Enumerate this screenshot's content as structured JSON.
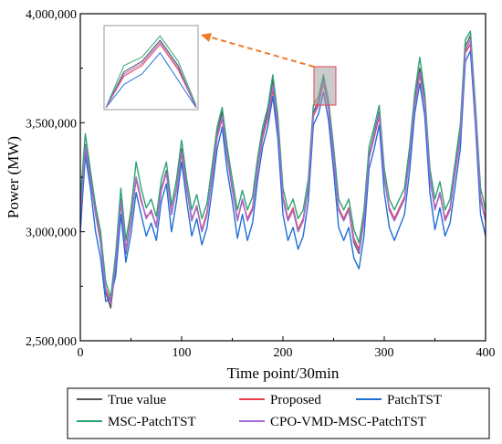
{
  "chart_data": {
    "type": "line",
    "xlabel": "Time point/30min",
    "ylabel": "Power (MW)",
    "xlim": [
      0,
      400
    ],
    "ylim": [
      2500000,
      4000000
    ],
    "x_ticks": [
      0,
      100,
      200,
      300,
      400
    ],
    "x_tick_labels": [
      "0",
      "100",
      "200",
      "300",
      "400"
    ],
    "y_ticks": [
      2500000,
      3000000,
      3500000,
      4000000
    ],
    "y_tick_labels": [
      "2,500,000",
      "3,000,000",
      "3,500,000",
      "4,000,000"
    ],
    "grid": false,
    "legend_position": "bottom",
    "x": [
      0,
      5,
      10,
      15,
      20,
      25,
      30,
      35,
      40,
      45,
      50,
      55,
      60,
      65,
      70,
      75,
      80,
      85,
      90,
      95,
      100,
      105,
      110,
      115,
      120,
      125,
      130,
      135,
      140,
      145,
      150,
      155,
      160,
      165,
      170,
      175,
      180,
      185,
      190,
      195,
      200,
      205,
      210,
      215,
      220,
      225,
      230,
      235,
      240,
      245,
      250,
      255,
      260,
      265,
      270,
      275,
      280,
      285,
      290,
      295,
      300,
      305,
      310,
      315,
      320,
      325,
      330,
      335,
      340,
      345,
      350,
      355,
      360,
      365,
      370,
      375,
      380,
      385,
      390,
      395,
      400
    ],
    "series": [
      {
        "name": "True value",
        "color": "#555555",
        "values": [
          3050000,
          3400000,
          3250000,
          3080000,
          2950000,
          2720000,
          2650000,
          2850000,
          3150000,
          2900000,
          3050000,
          3250000,
          3150000,
          3060000,
          3100000,
          3020000,
          3200000,
          3280000,
          3080000,
          3200000,
          3380000,
          3200000,
          3050000,
          3120000,
          3000000,
          3080000,
          3250000,
          3450000,
          3550000,
          3350000,
          3200000,
          3050000,
          3150000,
          3050000,
          3100000,
          3300000,
          3450000,
          3550000,
          3700000,
          3500000,
          3150000,
          3050000,
          3100000,
          3000000,
          3050000,
          3200000,
          3550000,
          3600000,
          3700000,
          3580000,
          3350000,
          3100000,
          3050000,
          3100000,
          2950000,
          2900000,
          3050000,
          3350000,
          3450000,
          3550000,
          3250000,
          3100000,
          3050000,
          3100000,
          3150000,
          3350000,
          3600000,
          3750000,
          3600000,
          3250000,
          3100000,
          3180000,
          3050000,
          3100000,
          3280000,
          3450000,
          3850000,
          3900000,
          3550000,
          3150000,
          3050000
        ]
      },
      {
        "name": "Proposed",
        "color": "#e8414e",
        "values": [
          3100000,
          3380000,
          3230000,
          3090000,
          2970000,
          2740000,
          2680000,
          2870000,
          3130000,
          2920000,
          3060000,
          3240000,
          3140000,
          3070000,
          3090000,
          3030000,
          3190000,
          3270000,
          3090000,
          3190000,
          3360000,
          3190000,
          3060000,
          3110000,
          3010000,
          3090000,
          3240000,
          3430000,
          3520000,
          3340000,
          3190000,
          3060000,
          3140000,
          3060000,
          3110000,
          3290000,
          3430000,
          3520000,
          3650000,
          3480000,
          3160000,
          3060000,
          3110000,
          3010000,
          3060000,
          3200000,
          3530000,
          3580000,
          3680000,
          3560000,
          3340000,
          3110000,
          3060000,
          3110000,
          2970000,
          2920000,
          3060000,
          3340000,
          3430000,
          3530000,
          3240000,
          3110000,
          3060000,
          3110000,
          3160000,
          3340000,
          3580000,
          3720000,
          3580000,
          3240000,
          3110000,
          3170000,
          3060000,
          3110000,
          3270000,
          3430000,
          3820000,
          3860000,
          3530000,
          3160000,
          3060000
        ]
      },
      {
        "name": "PatchTST",
        "color": "#1f6fd6",
        "values": [
          3000000,
          3350000,
          3200000,
          3000000,
          2880000,
          2680000,
          2700000,
          2800000,
          3080000,
          2860000,
          2990000,
          3180000,
          3080000,
          2980000,
          3040000,
          2960000,
          3140000,
          3220000,
          3000000,
          3140000,
          3320000,
          3140000,
          2980000,
          3060000,
          2940000,
          3020000,
          3190000,
          3380000,
          3480000,
          3280000,
          3140000,
          2970000,
          3080000,
          2960000,
          3040000,
          3240000,
          3390000,
          3480000,
          3620000,
          3430000,
          3080000,
          2960000,
          3020000,
          2920000,
          2980000,
          3140000,
          3490000,
          3540000,
          3640000,
          3510000,
          3280000,
          3020000,
          2960000,
          3020000,
          2880000,
          2830000,
          2980000,
          3290000,
          3380000,
          3490000,
          3180000,
          3020000,
          2960000,
          3020000,
          3080000,
          3280000,
          3540000,
          3680000,
          3530000,
          3180000,
          3010000,
          3110000,
          2980000,
          3040000,
          3210000,
          3380000,
          3780000,
          3830000,
          3490000,
          3080000,
          2980000
        ]
      },
      {
        "name": "MSC-PatchTST",
        "color": "#2aa46e",
        "values": [
          3150000,
          3450000,
          3280000,
          3120000,
          3000000,
          2770000,
          2700000,
          2900000,
          3200000,
          2960000,
          3100000,
          3320000,
          3200000,
          3110000,
          3150000,
          3070000,
          3240000,
          3320000,
          3120000,
          3240000,
          3420000,
          3240000,
          3100000,
          3170000,
          3060000,
          3130000,
          3300000,
          3480000,
          3570000,
          3390000,
          3240000,
          3100000,
          3190000,
          3100000,
          3160000,
          3340000,
          3480000,
          3570000,
          3720000,
          3530000,
          3200000,
          3100000,
          3150000,
          3060000,
          3100000,
          3240000,
          3580000,
          3620000,
          3720000,
          3600000,
          3390000,
          3150000,
          3100000,
          3150000,
          3010000,
          2950000,
          3100000,
          3390000,
          3480000,
          3580000,
          3290000,
          3150000,
          3100000,
          3150000,
          3200000,
          3390000,
          3630000,
          3800000,
          3630000,
          3290000,
          3150000,
          3230000,
          3100000,
          3150000,
          3320000,
          3490000,
          3880000,
          3920000,
          3580000,
          3200000,
          3100000
        ]
      },
      {
        "name": "CPO-VMD-MSC-PatchTST",
        "color": "#a66bd6",
        "values": [
          3070000,
          3390000,
          3240000,
          3080000,
          2960000,
          2730000,
          2670000,
          2860000,
          3140000,
          2910000,
          3050000,
          3250000,
          3150000,
          3060000,
          3100000,
          3020000,
          3200000,
          3270000,
          3080000,
          3200000,
          3370000,
          3200000,
          3050000,
          3120000,
          3000000,
          3080000,
          3250000,
          3440000,
          3530000,
          3340000,
          3200000,
          3050000,
          3150000,
          3050000,
          3100000,
          3300000,
          3440000,
          3530000,
          3670000,
          3490000,
          3150000,
          3050000,
          3100000,
          3000000,
          3050000,
          3200000,
          3540000,
          3590000,
          3690000,
          3570000,
          3350000,
          3100000,
          3050000,
          3100000,
          2960000,
          2910000,
          3050000,
          3340000,
          3440000,
          3540000,
          3250000,
          3100000,
          3050000,
          3100000,
          3150000,
          3340000,
          3590000,
          3730000,
          3590000,
          3250000,
          3100000,
          3180000,
          3050000,
          3100000,
          3280000,
          3440000,
          3830000,
          3880000,
          3540000,
          3150000,
          3050000
        ]
      }
    ]
  }
}
